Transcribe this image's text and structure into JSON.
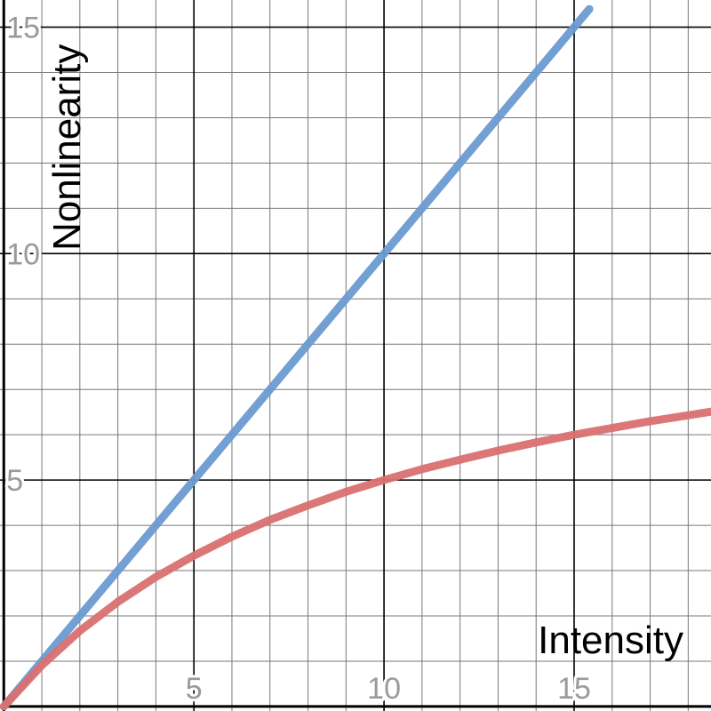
{
  "chart_data": {
    "type": "line",
    "title": "",
    "xlabel": "Intensity",
    "ylabel": "Nonlinearity",
    "xlim": [
      -0.1,
      18.6
    ],
    "ylim": [
      -0.1,
      15.6
    ],
    "grid": true,
    "minor_grid_step": 1,
    "major_grid_step": 5,
    "x_ticks": [
      5,
      10,
      15
    ],
    "y_ticks": [
      5,
      10,
      15
    ],
    "x_tick_labels": [
      "5",
      "10",
      "15"
    ],
    "y_tick_labels": [
      "5",
      "10",
      "15"
    ],
    "tick_label_color": "#9a9a9a",
    "series": [
      {
        "color": "#6b9bd1",
        "x": [
          0,
          2,
          4,
          6,
          8,
          10,
          12,
          14,
          15.4
        ],
        "y": [
          0,
          2,
          4,
          6,
          8,
          10,
          12,
          14,
          15.4
        ]
      },
      {
        "color": "#d97070",
        "x": [
          0,
          1,
          2,
          3,
          4,
          5,
          6,
          7,
          8,
          9,
          10,
          11,
          12,
          13,
          14,
          15,
          16,
          17,
          18,
          18.6
        ],
        "y": [
          0,
          0.91,
          1.67,
          2.31,
          2.86,
          3.33,
          3.75,
          4.12,
          4.44,
          4.74,
          5.0,
          5.24,
          5.45,
          5.65,
          5.83,
          6.0,
          6.15,
          6.3,
          6.43,
          6.51
        ]
      }
    ]
  }
}
